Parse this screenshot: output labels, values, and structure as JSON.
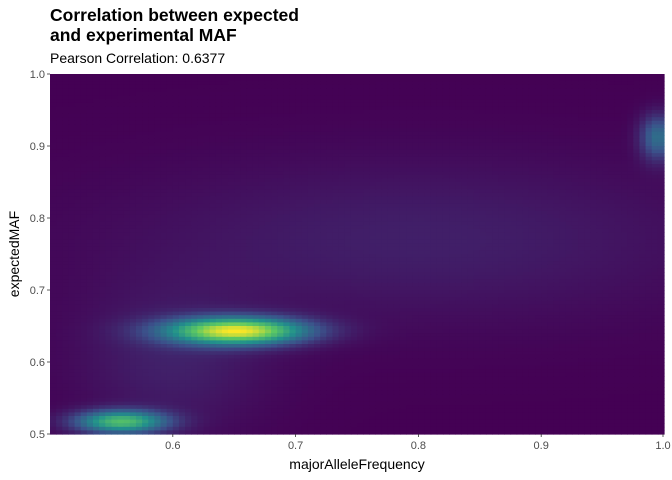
{
  "chart_data": {
    "type": "heatmap",
    "title_lines": [
      "Correlation between expected",
      "and experimental MAF"
    ],
    "subtitle": "Pearson Correlation: 0.6377",
    "xlabel": "majorAlleleFrequency",
    "ylabel": "expectedMAF",
    "xlim": [
      0.5,
      1.0
    ],
    "ylim": [
      0.5,
      1.0
    ],
    "x_ticks": [
      0.6,
      0.7,
      0.8,
      0.9,
      1.0
    ],
    "x_tick_labels": [
      "0.6",
      "0.7",
      "0.8",
      "0.9",
      "1.0"
    ],
    "y_ticks": [
      0.5,
      0.6,
      0.7,
      0.8,
      0.9,
      1.0
    ],
    "y_tick_labels": [
      "0.5",
      "0.6",
      "0.7",
      "0.8",
      "0.9",
      "1.0"
    ],
    "grid": false,
    "legend": "none",
    "colormap": "viridis",
    "colors": [
      "#440154",
      "#3b528b",
      "#21908c",
      "#5dc863",
      "#fde725"
    ],
    "density_peaks": [
      {
        "x": 0.652,
        "y": 0.643,
        "sx": 0.04,
        "sy": 0.013,
        "weight": 1.0
      },
      {
        "x": 0.558,
        "y": 0.517,
        "sx": 0.026,
        "sy": 0.011,
        "weight": 0.72
      },
      {
        "x": 0.995,
        "y": 0.912,
        "sx": 0.01,
        "sy": 0.022,
        "weight": 0.38
      },
      {
        "x": 0.8,
        "y": 0.77,
        "sx": 0.17,
        "sy": 0.08,
        "weight": 0.1
      },
      {
        "x": 0.6,
        "y": 0.6,
        "sx": 0.055,
        "sy": 0.07,
        "weight": 0.1
      }
    ]
  }
}
